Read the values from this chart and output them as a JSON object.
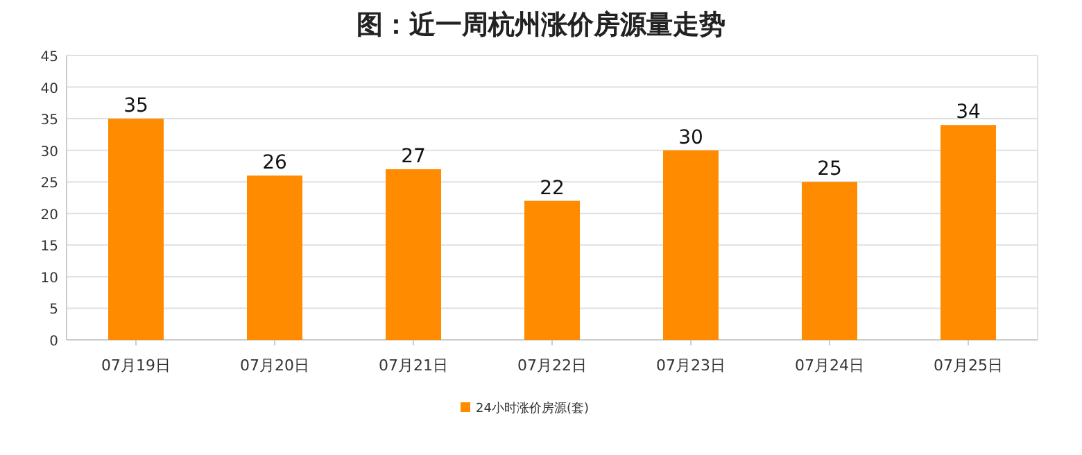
{
  "chart_data": {
    "type": "bar",
    "title": "图：近一周杭州涨价房源量走势",
    "categories": [
      "07月19日",
      "07月20日",
      "07月21日",
      "07月22日",
      "07月23日",
      "07月24日",
      "07月25日"
    ],
    "series": [
      {
        "name": "24小时涨价房源(套)",
        "color": "#ff8c00",
        "values": [
          35,
          26,
          27,
          22,
          30,
          25,
          34
        ]
      }
    ],
    "ylim": [
      0,
      45
    ],
    "yticks": [
      0,
      5,
      10,
      15,
      20,
      25,
      30,
      35,
      40,
      45
    ],
    "grid": "y",
    "legend": "bottom",
    "data_labels": true
  }
}
